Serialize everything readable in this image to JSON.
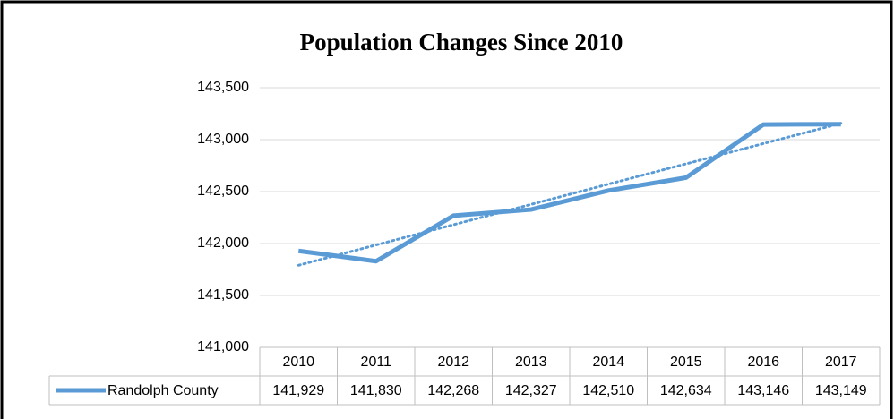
{
  "chart_data": {
    "type": "line",
    "title": "Population Changes Since 2010",
    "categories": [
      "2010",
      "2011",
      "2012",
      "2013",
      "2014",
      "2015",
      "2016",
      "2017"
    ],
    "series": [
      {
        "name": "Randolph County",
        "color": "#5b9bd5",
        "values": [
          141929,
          141830,
          142268,
          142327,
          142510,
          142634,
          143146,
          143149
        ],
        "value_labels": [
          "141,929",
          "141,830",
          "142,268",
          "142,327",
          "142,510",
          "142,634",
          "143,146",
          "143,149"
        ]
      }
    ],
    "ylim": [
      141000,
      143500
    ],
    "yticks": [
      {
        "value": 141000,
        "label": "141,000"
      },
      {
        "value": 141500,
        "label": "141,500"
      },
      {
        "value": 142000,
        "label": "142,000"
      },
      {
        "value": 142500,
        "label": "142,500"
      },
      {
        "value": 143000,
        "label": "143,000"
      },
      {
        "value": 143500,
        "label": "143,500"
      }
    ],
    "grid": true,
    "trendline": "linear",
    "data_table": true
  }
}
